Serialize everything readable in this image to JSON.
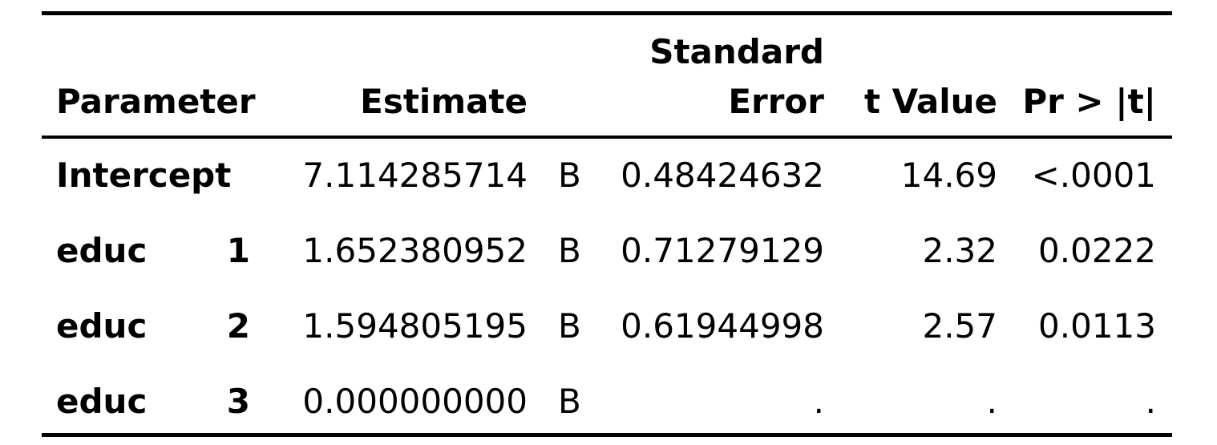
{
  "table": {
    "headers": {
      "parameter": "Parameter",
      "estimate": "Estimate",
      "std_error_line1": "Standard",
      "std_error_line2": "Error",
      "t_value": "t Value",
      "p_value": "Pr > |t|"
    },
    "rows": [
      {
        "parameter": "Intercept",
        "level": "",
        "estimate": "7.114285714",
        "flag": "B",
        "std_error": "0.48424632",
        "t_value": "14.69",
        "p_value": "<.0001"
      },
      {
        "parameter": "educ",
        "level": "1",
        "estimate": "1.652380952",
        "flag": "B",
        "std_error": "0.71279129",
        "t_value": "2.32",
        "p_value": "0.0222"
      },
      {
        "parameter": "educ",
        "level": "2",
        "estimate": "1.594805195",
        "flag": "B",
        "std_error": "0.61944998",
        "t_value": "2.57",
        "p_value": "0.0113"
      },
      {
        "parameter": "educ",
        "level": "3",
        "estimate": "0.000000000",
        "flag": "B",
        "std_error": ".",
        "t_value": ".",
        "p_value": "."
      }
    ]
  }
}
